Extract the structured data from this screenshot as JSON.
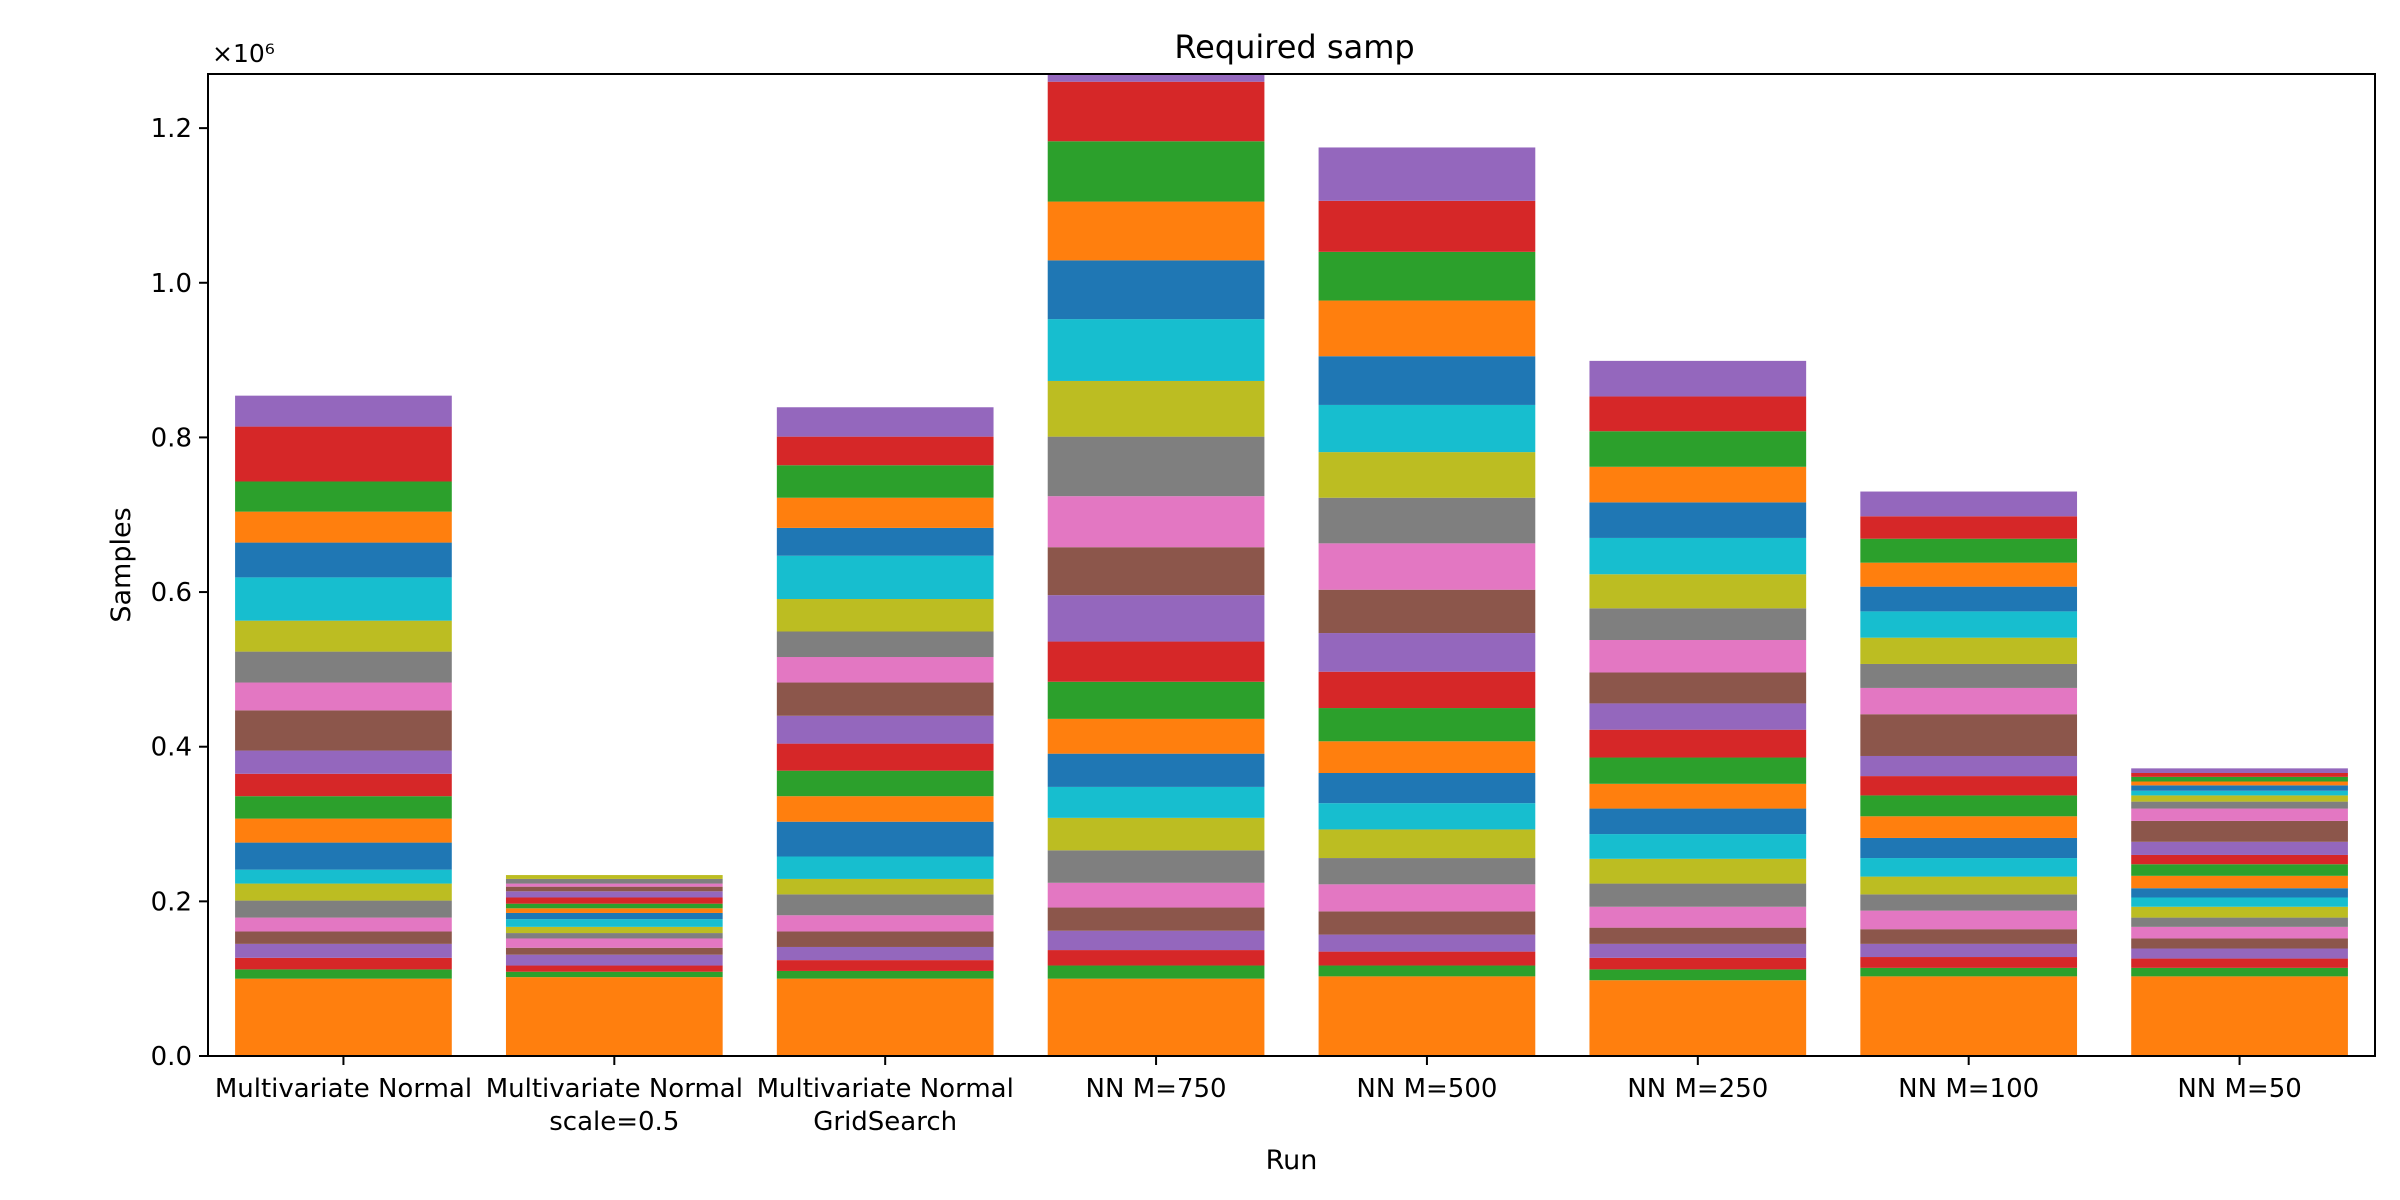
{
  "chart_data": {
    "type": "bar",
    "stacked": true,
    "title": "Required samp",
    "xlabel": "Run",
    "ylabel": "Samples",
    "offset_label": "×10⁶",
    "ylim": [
      0,
      1.27
    ],
    "ylim_scale": 1000000,
    "yticks": [
      0.0,
      0.2,
      0.4,
      0.6,
      0.8,
      1.0,
      1.2
    ],
    "ytick_labels": [
      "0.0",
      "0.2",
      "0.4",
      "0.6",
      "0.8",
      "1.0",
      "1.2"
    ],
    "categories": [
      [
        "Multivariate Normal"
      ],
      [
        "Multivariate Normal",
        "scale=0.5"
      ],
      [
        "Multivariate Normal",
        "GridSearch"
      ],
      [
        "NN M=750"
      ],
      [
        "NN M=500"
      ],
      [
        "NN M=250"
      ],
      [
        "NN M=100"
      ],
      [
        "NN M=50"
      ]
    ],
    "colors": [
      "#ff7f0e",
      "#2ca02c",
      "#d62728",
      "#9467bd",
      "#8c564b",
      "#e377c2",
      "#7f7f7f",
      "#bcbd22",
      "#17becf",
      "#1f77b4"
    ],
    "stacks": [
      [
        0.1,
        0.012,
        0.015,
        0.018,
        0.016,
        0.018,
        0.022,
        0.022,
        0.018,
        0.035,
        0.031,
        0.029,
        0.029,
        0.03,
        0.052,
        0.036,
        0.04,
        0.04,
        0.056,
        0.045,
        0.04,
        0.039,
        0.071,
        0.04
      ],
      [
        0.102,
        0.007,
        0.008,
        0.014,
        0.009,
        0.012,
        0.007,
        0.008,
        0.01,
        0.008,
        0.006,
        0.006,
        0.008,
        0.008,
        0.006,
        0.004,
        0.006,
        0.005
      ],
      [
        0.1,
        0.01,
        0.014,
        0.017,
        0.02,
        0.021,
        0.027,
        0.02,
        0.029,
        0.045,
        0.033,
        0.033,
        0.035,
        0.036,
        0.043,
        0.033,
        0.033,
        0.042,
        0.056,
        0.036,
        0.039,
        0.042,
        0.037,
        0.038
      ],
      [
        0.1,
        0.017,
        0.02,
        0.025,
        0.03,
        0.032,
        0.042,
        0.042,
        0.04,
        0.043,
        0.045,
        0.048,
        0.052,
        0.06,
        0.062,
        0.066,
        0.077,
        0.072,
        0.08,
        0.076,
        0.076,
        0.078,
        0.077,
        0.083
      ],
      [
        0.103,
        0.014,
        0.018,
        0.022,
        0.03,
        0.035,
        0.034,
        0.037,
        0.034,
        0.039,
        0.041,
        0.043,
        0.047,
        0.05,
        0.056,
        0.06,
        0.059,
        0.059,
        0.061,
        0.063,
        0.072,
        0.063,
        0.066,
        0.069
      ],
      [
        0.098,
        0.014,
        0.015,
        0.018,
        0.021,
        0.027,
        0.03,
        0.032,
        0.032,
        0.033,
        0.032,
        0.034,
        0.036,
        0.034,
        0.04,
        0.042,
        0.041,
        0.044,
        0.047,
        0.046,
        0.046,
        0.046,
        0.045,
        0.046
      ],
      [
        0.103,
        0.011,
        0.014,
        0.017,
        0.019,
        0.024,
        0.021,
        0.023,
        0.024,
        0.026,
        0.028,
        0.027,
        0.025,
        0.026,
        0.054,
        0.034,
        0.031,
        0.034,
        0.034,
        0.032,
        0.031,
        0.031,
        0.029,
        0.032
      ],
      [
        0.103,
        0.011,
        0.012,
        0.013,
        0.013,
        0.015,
        0.012,
        0.014,
        0.012,
        0.012,
        0.016,
        0.015,
        0.012,
        0.017,
        0.027,
        0.016,
        0.009,
        0.008,
        0.006,
        0.007,
        0.005,
        0.006,
        0.005,
        0.006
      ]
    ]
  }
}
